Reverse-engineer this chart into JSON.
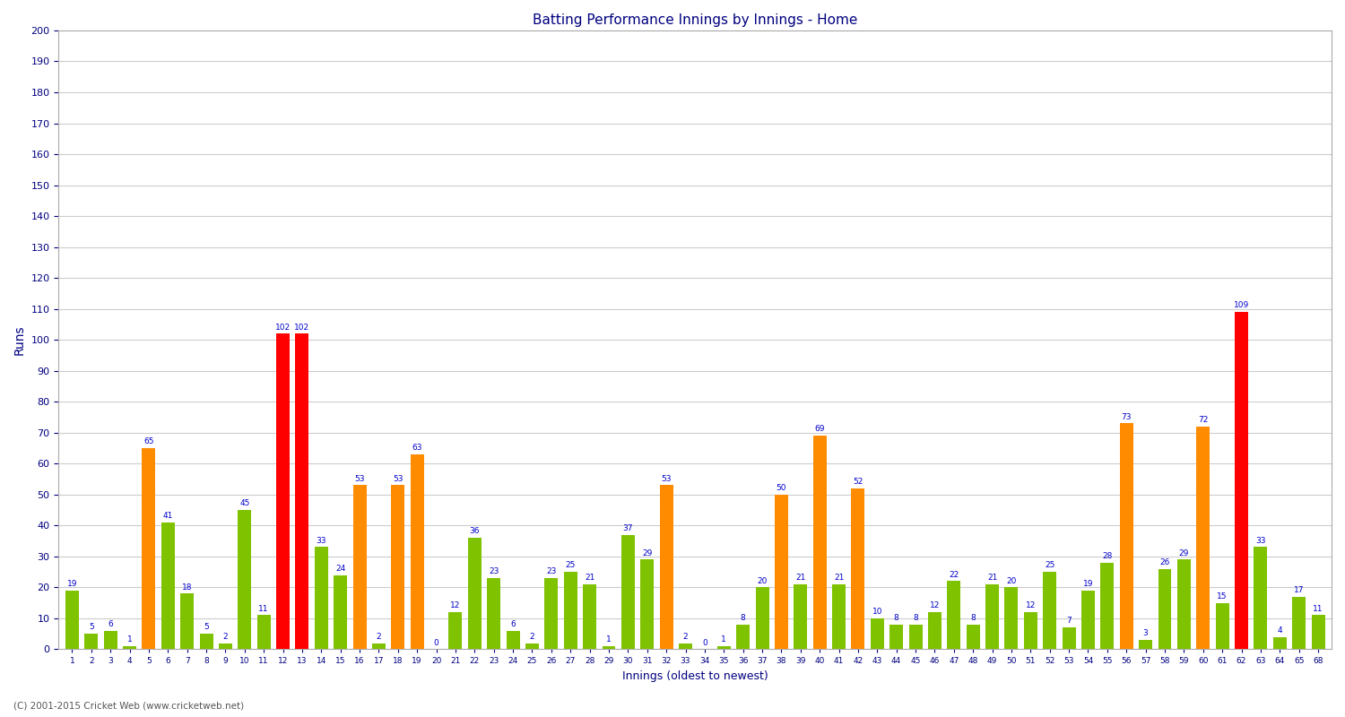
{
  "title": "Batting Performance Innings by Innings - Home",
  "xlabel": "Innings (oldest to newest)",
  "ylabel": "Runs",
  "ylim": [
    0,
    200
  ],
  "yticks": [
    0,
    10,
    20,
    30,
    40,
    50,
    60,
    70,
    80,
    90,
    100,
    110,
    120,
    130,
    140,
    150,
    160,
    170,
    180,
    190,
    200
  ],
  "innings": [
    "1",
    "2",
    "3",
    "4",
    "5",
    "6",
    "7",
    "8",
    "9",
    "10",
    "11",
    "12",
    "13",
    "14",
    "15",
    "16",
    "17",
    "18",
    "19",
    "20",
    "21",
    "22",
    "23",
    "24",
    "25",
    "26",
    "27",
    "28",
    "29",
    "30",
    "31",
    "32",
    "33",
    "34",
    "35",
    "36",
    "37",
    "38",
    "39",
    "40",
    "41",
    "42",
    "43",
    "44",
    "45",
    "46",
    "47",
    "48",
    "49",
    "50",
    "51",
    "52",
    "53",
    "54",
    "55",
    "56",
    "57",
    "58",
    "59",
    "60",
    "61",
    "62",
    "63",
    "64",
    "65",
    "68"
  ],
  "scores": [
    19,
    5,
    6,
    1,
    65,
    41,
    18,
    5,
    2,
    45,
    11,
    102,
    102,
    33,
    24,
    53,
    2,
    53,
    63,
    0,
    12,
    36,
    23,
    6,
    2,
    23,
    25,
    21,
    1,
    37,
    29,
    53,
    2,
    0,
    1,
    8,
    20,
    50,
    21,
    69,
    21,
    52,
    10,
    8,
    8,
    12,
    22,
    8,
    21,
    20,
    12,
    25,
    7,
    19,
    28,
    73,
    3,
    26,
    29,
    72,
    15,
    109,
    33,
    4,
    17,
    11
  ],
  "colors": [
    "#7fc200",
    "#7fc200",
    "#7fc200",
    "#7fc200",
    "#ff8c00",
    "#7fc200",
    "#7fc200",
    "#7fc200",
    "#7fc200",
    "#7fc200",
    "#7fc200",
    "#ff0000",
    "#ff0000",
    "#7fc200",
    "#7fc200",
    "#ff8c00",
    "#7fc200",
    "#ff8c00",
    "#ff8c00",
    "#7fc200",
    "#7fc200",
    "#7fc200",
    "#7fc200",
    "#7fc200",
    "#7fc200",
    "#7fc200",
    "#7fc200",
    "#7fc200",
    "#7fc200",
    "#7fc200",
    "#7fc200",
    "#ff8c00",
    "#7fc200",
    "#7fc200",
    "#7fc200",
    "#7fc200",
    "#7fc200",
    "#ff8c00",
    "#7fc200",
    "#ff8c00",
    "#7fc200",
    "#ff8c00",
    "#7fc200",
    "#7fc200",
    "#7fc200",
    "#7fc200",
    "#7fc200",
    "#7fc200",
    "#7fc200",
    "#7fc200",
    "#7fc200",
    "#7fc200",
    "#7fc200",
    "#7fc200",
    "#7fc200",
    "#ff8c00",
    "#7fc200",
    "#7fc200",
    "#7fc200",
    "#ff8c00",
    "#7fc200",
    "#ff0000",
    "#7fc200",
    "#7fc200",
    "#7fc200",
    "#7fc200"
  ],
  "background_color": "#ffffff",
  "grid_color": "#cccccc",
  "label_color": "#0000cc",
  "tick_color": "#000080",
  "bar_width": 0.7
}
